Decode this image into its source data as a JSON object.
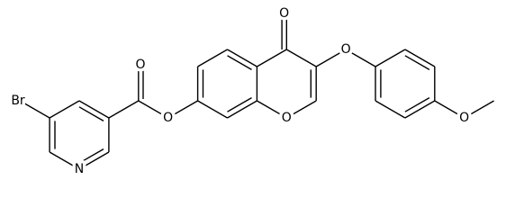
{
  "atoms": [
    "Br",
    "O",
    "O",
    "O",
    "O",
    "O",
    "N",
    "O"
  ]
}
